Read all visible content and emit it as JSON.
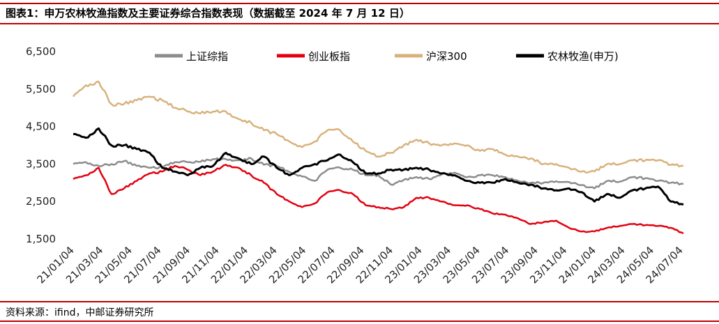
{
  "title": "图表1：申万农林牧渔指数及主要证券综合指数表现（数据截至 2024 年 7 月 12 日）",
  "source": "资料来源：ifind，中邮证券研究所",
  "colors": {
    "rule": "#c00000",
    "sh": "#8c8c8c",
    "cy": "#e3000f",
    "hs": "#d8b27c",
    "ag": "#000000"
  },
  "chart_data": {
    "type": "line",
    "title": "",
    "xlabel": "",
    "ylabel": "",
    "ylim": [
      1500,
      6500
    ],
    "yticks": [
      1500,
      2500,
      3500,
      4500,
      5500,
      6500
    ],
    "ytick_labels": [
      "1,500",
      "2,500",
      "3,500",
      "4,500",
      "5,500",
      "6,500"
    ],
    "xticks": [
      "21/01/04",
      "21/03/04",
      "21/05/04",
      "21/07/04",
      "21/09/04",
      "21/11/04",
      "22/01/04",
      "22/03/04",
      "22/05/04",
      "22/07/04",
      "22/09/04",
      "22/11/04",
      "23/01/04",
      "23/03/04",
      "23/05/04",
      "23/07/04",
      "23/09/04",
      "23/11/04",
      "24/01/04",
      "24/03/04",
      "24/05/04",
      "24/07/04"
    ],
    "grid": false,
    "legend_position": "top",
    "series": [
      {
        "name": "上证综指",
        "color_key": "sh",
        "values": [
          3500,
          3550,
          3450,
          3500,
          3580,
          3450,
          3400,
          3420,
          3550,
          3550,
          3560,
          3630,
          3630,
          3600,
          3650,
          3480,
          3450,
          3290,
          3170,
          3050,
          3350,
          3400,
          3350,
          3200,
          3200,
          2950,
          3080,
          3150,
          3100,
          3230,
          3270,
          3150,
          3200,
          3200,
          3150,
          3050,
          3000,
          3000,
          3040,
          3020,
          2940,
          2850,
          3050,
          3030,
          3150,
          3120,
          3050,
          3000,
          2970
        ]
      },
      {
        "name": "创业板指",
        "color_key": "cy",
        "values": [
          3100,
          3200,
          3400,
          2700,
          2850,
          3050,
          3250,
          3300,
          3450,
          3350,
          3200,
          3300,
          3480,
          3400,
          3200,
          3000,
          2700,
          2500,
          2350,
          2450,
          2750,
          2800,
          2700,
          2400,
          2350,
          2300,
          2350,
          2600,
          2600,
          2500,
          2400,
          2400,
          2300,
          2180,
          2150,
          2050,
          1900,
          1950,
          1990,
          1800,
          1700,
          1700,
          1800,
          1850,
          1900,
          1870,
          1850,
          1800,
          1650
        ]
      },
      {
        "name": "沪深300",
        "color_key": "hs",
        "values": [
          5300,
          5600,
          5700,
          5100,
          5100,
          5200,
          5300,
          5200,
          5000,
          4900,
          4850,
          4900,
          4900,
          4700,
          4600,
          4400,
          4300,
          4100,
          3950,
          4100,
          4400,
          4400,
          4100,
          3850,
          3700,
          3800,
          4000,
          4150,
          4050,
          4000,
          4050,
          4000,
          3850,
          3900,
          3750,
          3700,
          3650,
          3500,
          3500,
          3400,
          3300,
          3300,
          3500,
          3500,
          3600,
          3600,
          3600,
          3480,
          3450
        ]
      },
      {
        "name": "农林牧渔(申万)",
        "color_key": "ag",
        "values": [
          4300,
          4200,
          4450,
          4000,
          4000,
          3900,
          3800,
          3400,
          3300,
          3200,
          3400,
          3450,
          3800,
          3650,
          3500,
          3700,
          3400,
          3200,
          3400,
          3500,
          3600,
          3750,
          3550,
          3250,
          3250,
          3350,
          3350,
          3400,
          3350,
          3250,
          3200,
          3050,
          3000,
          3000,
          3100,
          3000,
          2950,
          2850,
          2800,
          2850,
          2750,
          2500,
          2700,
          2600,
          2800,
          2850,
          2900,
          2500,
          2420
        ]
      }
    ]
  }
}
